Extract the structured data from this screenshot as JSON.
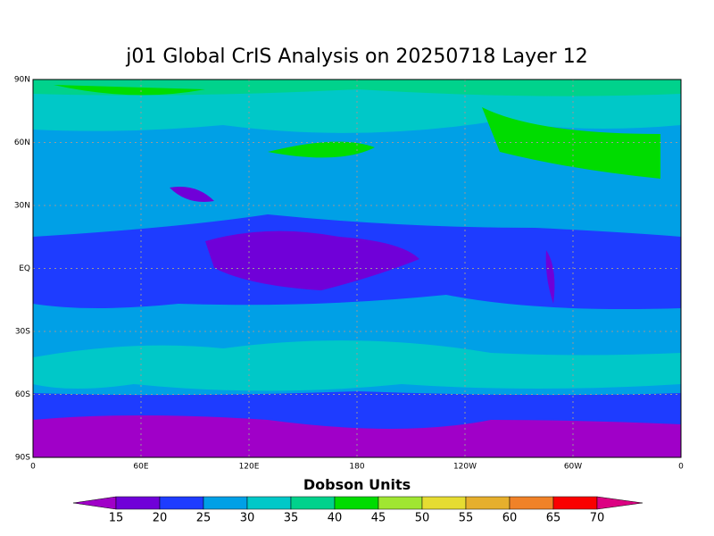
{
  "title": "j01 Global CrIS Analysis on 20250718 Layer 12",
  "lat_labels": [
    "90N",
    "60N",
    "30N",
    "EQ",
    "30S",
    "60S",
    "90S"
  ],
  "lon_labels": [
    "0",
    "60E",
    "120E",
    "180",
    "120W",
    "60W",
    "0"
  ],
  "colorbar": {
    "label": "Dobson Units",
    "levels": [
      15,
      20,
      25,
      30,
      35,
      40,
      45,
      50,
      55,
      60,
      65,
      70
    ],
    "colors": [
      "#a000c8",
      "#7000d8",
      "#1e3cff",
      "#00a0e6",
      "#00c8c8",
      "#00d28c",
      "#00dc00",
      "#a0e632",
      "#e6dc32",
      "#e6af2d",
      "#f08228",
      "#fa0000",
      "#dc0082"
    ]
  }
}
